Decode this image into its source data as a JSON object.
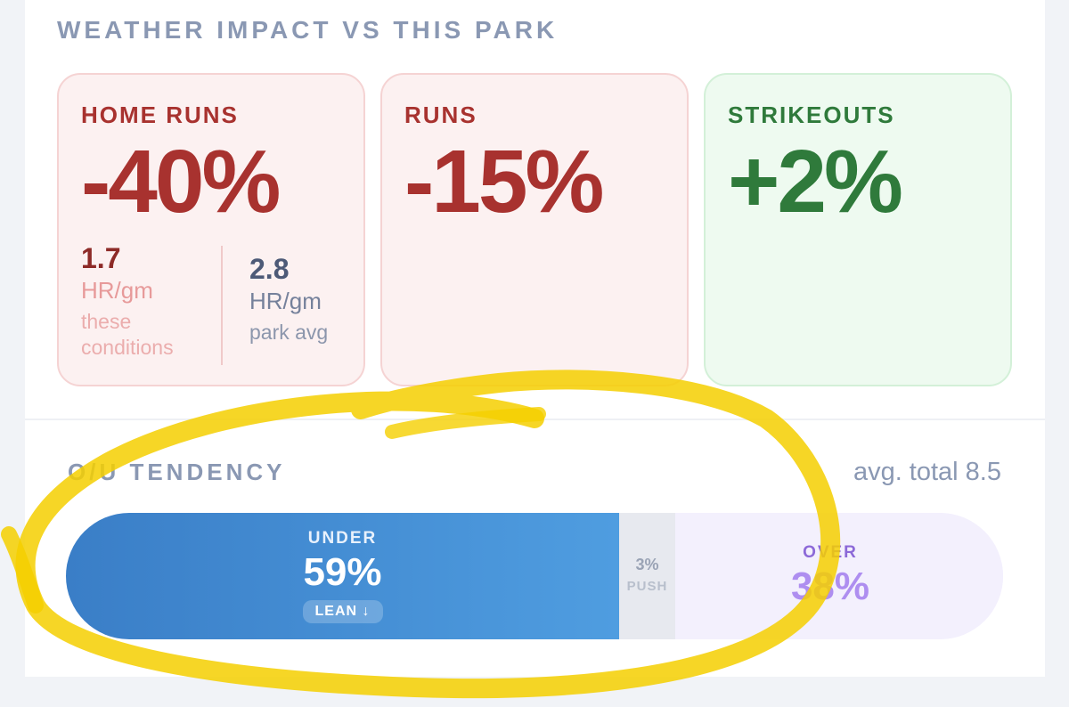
{
  "weather_impact": {
    "title": "WEATHER IMPACT VS THIS PARK",
    "tiles": [
      {
        "label": "HOME RUNS",
        "value": "-40%",
        "tone": "negative"
      },
      {
        "label": "RUNS",
        "value": "-15%",
        "tone": "negative"
      },
      {
        "label": "STRIKEOUTS",
        "value": "+2%",
        "tone": "positive"
      }
    ],
    "home_runs_detail": {
      "conditions": {
        "value": "1.7",
        "unit": "HR/gm",
        "caption": "these conditions"
      },
      "park": {
        "value": "2.8",
        "unit": "HR/gm",
        "caption": "park avg"
      }
    }
  },
  "ou_tendency": {
    "title": "O/U TENDENCY",
    "avg_total": "avg. total 8.5",
    "under": {
      "label": "UNDER",
      "value": "59%",
      "fraction": 0.59,
      "badge": "LEAN ↓"
    },
    "push": {
      "label": "PUSH",
      "value": "3%",
      "fraction": 0.03
    },
    "over": {
      "label": "OVER",
      "value": "38%",
      "fraction": 0.38
    }
  },
  "colors": {
    "negative": "#a8322f",
    "positive": "#2f7a3b",
    "under": "#4a94d8",
    "over": "#ae8ef0",
    "highlight": "#f5cf00"
  }
}
